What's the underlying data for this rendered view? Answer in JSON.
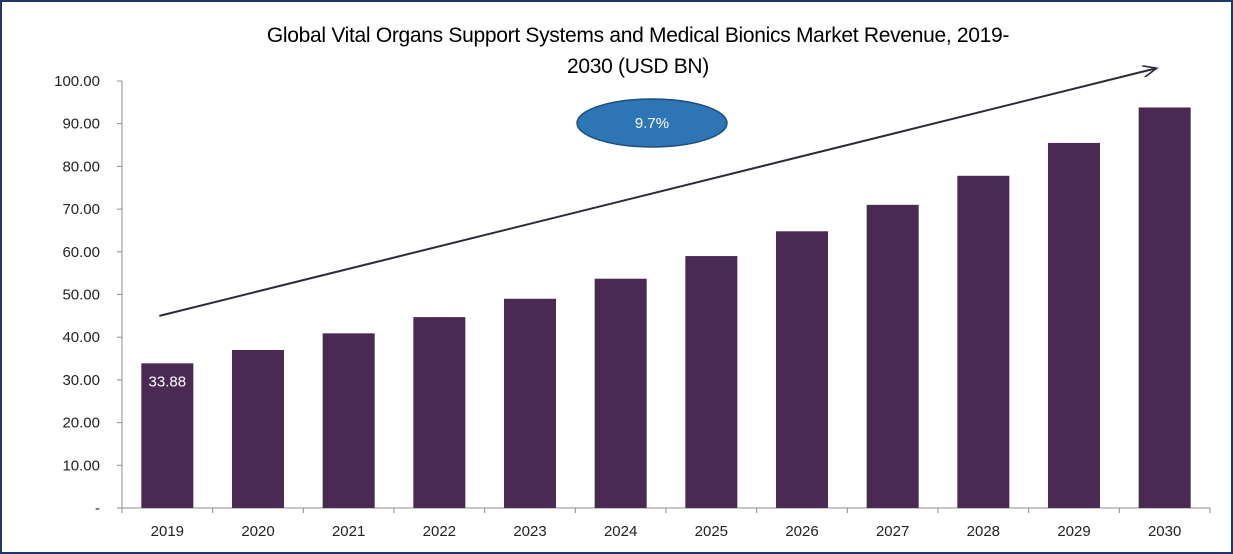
{
  "chart_data": {
    "type": "bar",
    "title_lines": [
      "Global Vital Organs Support Systems and Medical Bionics Market Revenue, 2019-",
      "2030 (USD BN)"
    ],
    "categories": [
      "2019",
      "2020",
      "2021",
      "2022",
      "2023",
      "2024",
      "2025",
      "2026",
      "2027",
      "2028",
      "2029",
      "2030"
    ],
    "values": [
      33.88,
      37.0,
      40.9,
      44.7,
      49.0,
      53.7,
      59.0,
      64.8,
      71.0,
      77.8,
      85.5,
      93.8
    ],
    "data_labels": [
      {
        "index": 0,
        "text": "33.88"
      }
    ],
    "ylim": [
      0,
      100
    ],
    "yticks": [
      0,
      10,
      20,
      30,
      40,
      50,
      60,
      70,
      80,
      90,
      100
    ],
    "ytick_labels": [
      "-",
      "10.00",
      "20.00",
      "30.00",
      "40.00",
      "50.00",
      "60.00",
      "70.00",
      "80.00",
      "90.00",
      "100.00"
    ],
    "annotation": {
      "text": "9.7%",
      "shape": "ellipse",
      "color": "#2e75b6"
    },
    "trend_arrow": {
      "from": [
        2019,
        45
      ],
      "to": [
        2030,
        103
      ]
    },
    "bar_color": "#4a2a52",
    "grid": false,
    "legend": "none"
  }
}
